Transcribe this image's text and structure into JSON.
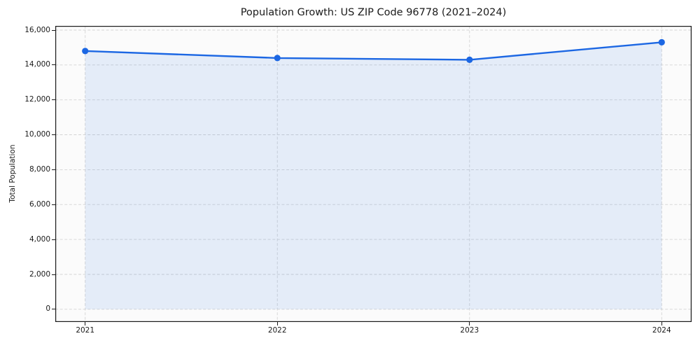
{
  "chart_data": {
    "type": "area",
    "title": "Population Growth: US ZIP Code 96778 (2021–2024)",
    "xlabel": "",
    "ylabel": "Total Population",
    "categories": [
      "2021",
      "2022",
      "2023",
      "2024"
    ],
    "series": [
      {
        "name": "Total Population",
        "values": [
          14800,
          14400,
          14300,
          15300
        ]
      }
    ],
    "ylim": [
      -730,
      16240
    ],
    "y_tick_values": [
      0,
      2000,
      4000,
      6000,
      8000,
      10000,
      12000,
      14000,
      16000
    ],
    "y_tick_labels": [
      "0",
      "2,000",
      "4,000",
      "6,000",
      "8,000",
      "10,000",
      "12,000",
      "14,000",
      "16,000"
    ],
    "grid": "dashed-both-axes",
    "legend": "none",
    "marker": "circle",
    "colors": {
      "line": "#1c67e3",
      "area_fill": "rgba(34,104,226,0.10)",
      "grid": "#d4d4d4",
      "spine": "#1a1a1a",
      "plot_bg": "#fbfbfb",
      "figure_bg": "#ffffff",
      "text": "#1a1a1a"
    }
  }
}
